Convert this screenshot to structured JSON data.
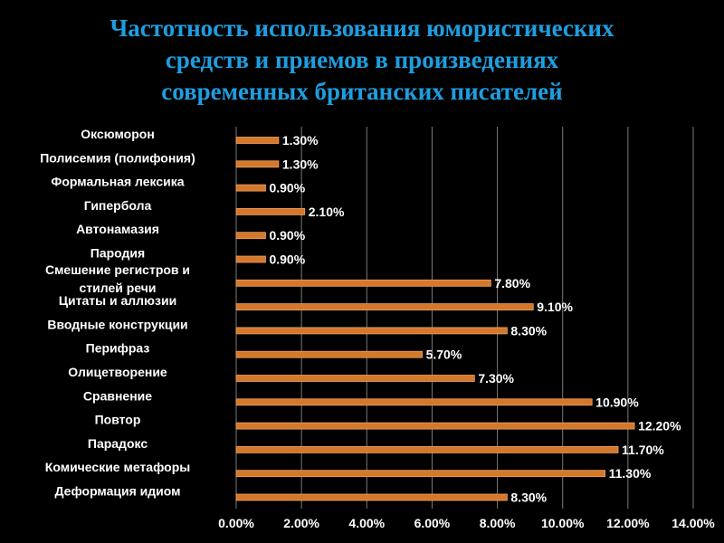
{
  "colors": {
    "background": "#000000",
    "title": "#1e9ee0",
    "bar": "#d4782c",
    "bar_edge": "#f0a060",
    "grid": "#7a7a7a",
    "text": "#ffffff"
  },
  "chart_data": {
    "type": "bar",
    "orientation": "horizontal",
    "title": "Частотность использования юмористических\nсредств и приемов в произведениях\nсовременных британских писателей",
    "categories": [
      "Оксюморон",
      "Полисемия (полифония)",
      "Формальная лексика",
      "Гипербола",
      "Автонамазия",
      "Пародия",
      "Смешение регистров и\nстилей речи",
      "Цитаты и аллюзии",
      "Вводные конструкции",
      "Перифраз",
      "Олицетворение",
      "Сравнение",
      "Повтор",
      "Парадокс",
      "Комические метафоры",
      "Деформация идиом"
    ],
    "values": [
      1.3,
      1.3,
      0.9,
      2.1,
      0.9,
      0.9,
      7.8,
      9.1,
      8.3,
      5.7,
      7.3,
      10.9,
      12.2,
      11.7,
      11.3,
      8.3
    ],
    "value_labels": [
      "1.30%",
      "1.30%",
      "0.90%",
      "2.10%",
      "0.90%",
      "0.90%",
      "7.80%",
      "9.10%",
      "8.30%",
      "5.70%",
      "7.30%",
      "10.90%",
      "12.20%",
      "11.70%",
      "11.30%",
      "8.30%"
    ],
    "x_ticks": [
      "0.00%",
      "2.00%",
      "4.00%",
      "6.00%",
      "8.00%",
      "10.00%",
      "12.00%",
      "14.00%"
    ],
    "xlim": [
      0,
      14
    ],
    "grid": true,
    "legend": "none"
  }
}
